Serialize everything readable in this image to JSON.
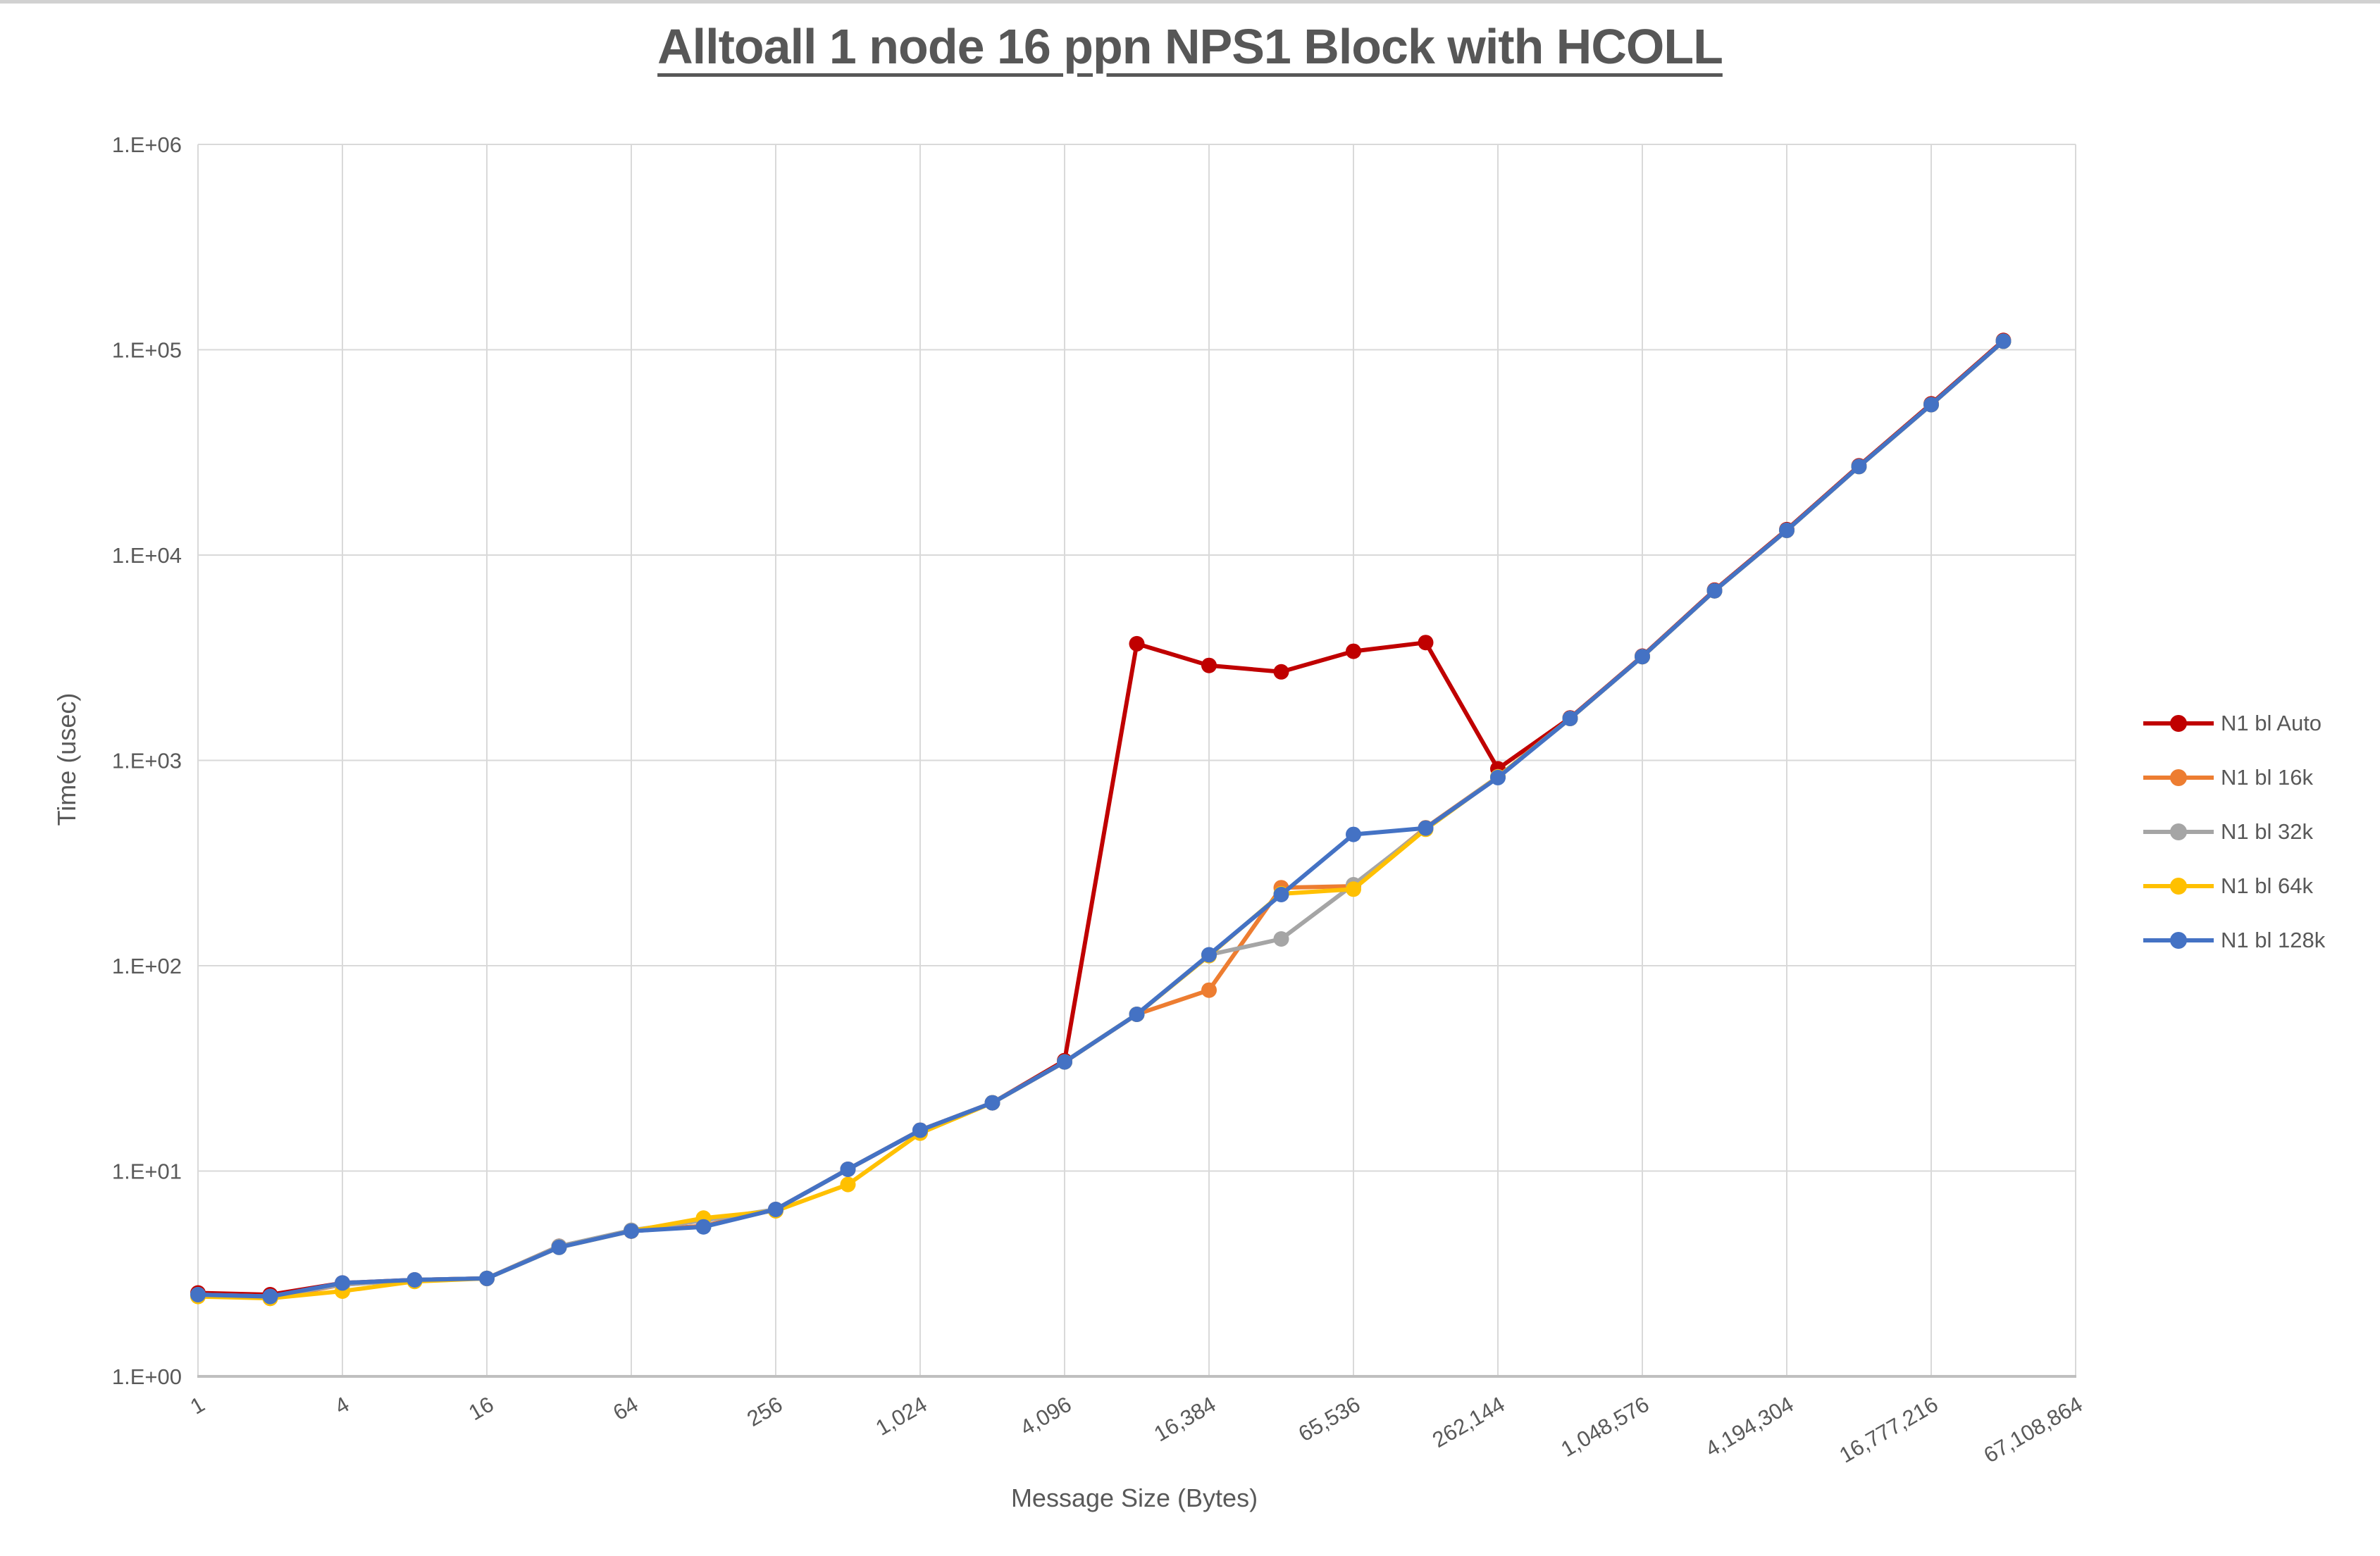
{
  "window": {
    "top_strip_color": "#d1d1d1",
    "background_color": "#ffffff"
  },
  "chart_data": {
    "type": "line",
    "title": "Alltoall 1 node 16 ppn NPS1 Block with HCOLL",
    "xlabel": "Message Size (Bytes)",
    "ylabel": "Time (usec)",
    "x_scale": "log2_categories",
    "y_scale": "log10",
    "ylim": [
      1,
      1000000
    ],
    "grid": true,
    "legend_position": "right",
    "text_color": "#595959",
    "grid_color": "#d9d9d9",
    "axis_line_color": "#bfbfbf",
    "y_tick_labels": [
      "1.E+00",
      "1.E+01",
      "1.E+02",
      "1.E+03",
      "1.E+04",
      "1.E+05",
      "1.E+06"
    ],
    "x_tick_labels": [
      "1",
      "4",
      "16",
      "64",
      "256",
      "1,024",
      "4,096",
      "16,384",
      "65,536",
      "262,144",
      "1,048,576",
      "4,194,304",
      "16,777,216",
      "67,108,864"
    ],
    "categories": [
      1,
      2,
      4,
      8,
      16,
      32,
      64,
      128,
      256,
      512,
      1024,
      2048,
      4096,
      8192,
      16384,
      32768,
      65536,
      131072,
      262144,
      524288,
      1048576,
      2097152,
      4194304,
      8388608,
      16777216,
      33554432
    ],
    "series": [
      {
        "name": "N1 bl Auto",
        "color": "#C00000",
        "values": [
          2.55,
          2.5,
          2.85,
          2.95,
          3.0,
          4.3,
          5.1,
          5.4,
          6.5,
          10.2,
          15.8,
          21.5,
          34.5,
          3700,
          2900,
          2700,
          3400,
          3750,
          910,
          1610,
          3220,
          6750,
          13300,
          27200,
          54500,
          111000
        ]
      },
      {
        "name": "N1 bl 16k",
        "color": "#ED7D31",
        "values": [
          2.5,
          2.4,
          2.8,
          2.95,
          3.0,
          4.3,
          5.1,
          5.4,
          6.5,
          10.2,
          15.8,
          21.5,
          34,
          58,
          76,
          240,
          244,
          470,
          832,
          1600,
          3200,
          6700,
          13200,
          27000,
          54000,
          110000
        ]
      },
      {
        "name": "N1 bl 32k",
        "color": "#A5A5A5",
        "values": [
          2.5,
          2.45,
          2.8,
          2.95,
          3.0,
          4.3,
          5.15,
          5.75,
          6.5,
          10.2,
          15.8,
          21.5,
          34,
          58,
          113,
          135,
          248,
          465,
          832,
          1600,
          3200,
          6700,
          13200,
          27000,
          54000,
          110000
        ]
      },
      {
        "name": "N1 bl 64k",
        "color": "#FFC000",
        "values": [
          2.45,
          2.4,
          2.6,
          2.9,
          3.0,
          4.25,
          5.1,
          5.9,
          6.4,
          8.6,
          15.3,
          21.5,
          34,
          58,
          112,
          224,
          236,
          462,
          830,
          1600,
          3200,
          6700,
          13200,
          27000,
          54000,
          110000
        ]
      },
      {
        "name": "N1 bl 128k",
        "color": "#4472C4",
        "values": [
          2.5,
          2.45,
          2.85,
          2.95,
          3.0,
          4.25,
          5.1,
          5.35,
          6.5,
          10.2,
          15.8,
          21.5,
          34,
          58,
          113,
          222,
          436,
          468,
          825,
          1600,
          3200,
          6700,
          13200,
          27000,
          54000,
          110000
        ]
      }
    ]
  }
}
